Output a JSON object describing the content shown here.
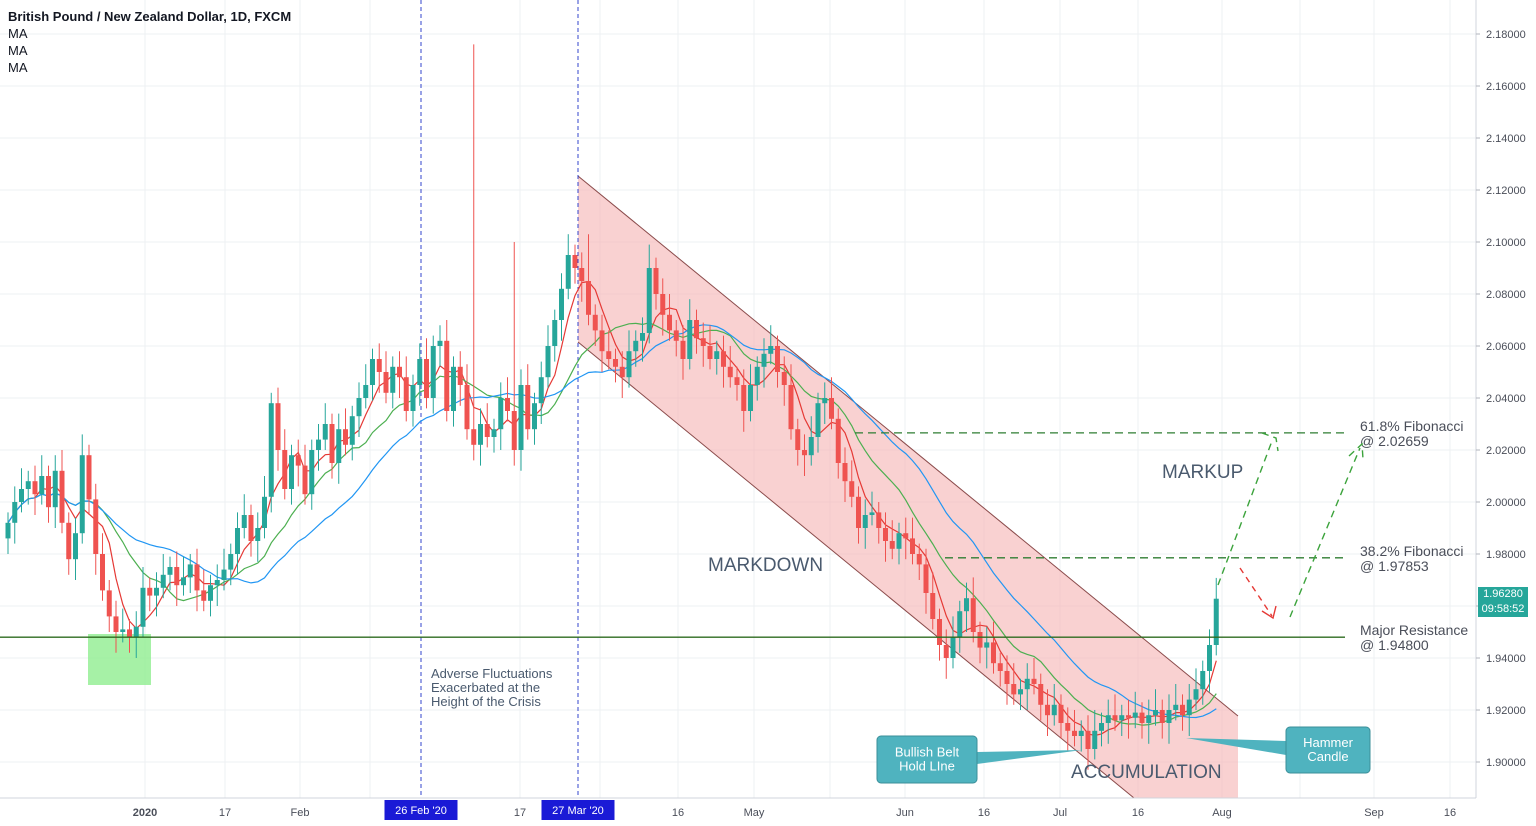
{
  "header": {
    "title": "British Pound / New Zealand Dollar, 1D, FXCM",
    "indicators": [
      "MA",
      "MA",
      "MA"
    ]
  },
  "price_tags": {
    "last": "1.96280",
    "countdown": "09:58:52"
  },
  "colors": {
    "up": "#26a69a",
    "down": "#ef5350",
    "ma_fast": "#e53935",
    "ma_mid": "#4caf50",
    "ma_slow": "#2196f3",
    "channel": "#f5b5b5",
    "callout": "#4fb3bf",
    "grid": "#eef0f3",
    "vline": "#3344cc",
    "date_badge": "#1a1ad6"
  },
  "chart_data": {
    "type": "candlestick",
    "title": "British Pound / New Zealand Dollar, 1D, FXCM",
    "ylim": [
      1.885,
      2.19
    ],
    "y_ticks": [
      "2.18000",
      "2.16000",
      "2.14000",
      "2.12000",
      "2.10000",
      "2.08000",
      "2.06000",
      "2.04000",
      "2.02000",
      "2.00000",
      "1.98000",
      "1.96000",
      "1.94000",
      "1.92000",
      "1.90000"
    ],
    "x_ticks": [
      "2020",
      "17",
      "Feb",
      "26 Feb '20",
      "17",
      "27 Mar '20",
      "16",
      "May",
      "Jun",
      "16",
      "Jul",
      "16",
      "Aug",
      "Sep",
      "16"
    ],
    "events": [
      "26 Feb '20",
      "27 Mar '20"
    ],
    "levels": [
      {
        "name": "Major Resistance",
        "value": 1.948,
        "label": "Major Resistance\n@ 1.94800"
      },
      {
        "name": "38.2% Fibonacci",
        "value": 1.97853,
        "label": "38.2% Fibonacci\n@ 1.97853"
      },
      {
        "name": "61.8% Fibonacci",
        "value": 2.02659,
        "label": "61.8% Fibonacci\n@ 2.02659"
      }
    ],
    "annotations": [
      "MARKDOWN",
      "MARKUP",
      "ACCUMULATION",
      "Adverse Fluctuations\nExacerbated at the\nHeight of the Crisis",
      "Bullish Belt\nHold LIne",
      "Hammer\nCandle"
    ],
    "last_price": 1.9628,
    "closes": [
      1.992,
      2.0,
      2.005,
      2.008,
      2.003,
      2.01,
      1.998,
      2.012,
      1.992,
      1.978,
      1.988,
      2.018,
      2.001,
      1.98,
      1.966,
      1.956,
      1.95,
      1.951,
      1.948,
      1.952,
      1.967,
      1.964,
      1.967,
      1.972,
      1.975,
      1.968,
      1.971,
      1.976,
      1.966,
      1.962,
      1.968,
      1.97,
      1.974,
      1.98,
      1.99,
      1.995,
      1.985,
      1.99,
      2.002,
      2.038,
      2.02,
      2.005,
      2.018,
      2.014,
      2.003,
      2.02,
      2.024,
      2.03,
      2.015,
      2.028,
      2.022,
      2.033,
      2.04,
      2.045,
      2.055,
      2.05,
      2.042,
      2.052,
      2.048,
      2.035,
      2.045,
      2.055,
      2.04,
      2.06,
      2.062,
      2.035,
      2.052,
      2.045,
      2.028,
      2.022,
      2.03,
      2.025,
      2.028,
      2.04,
      2.035,
      2.02,
      2.045,
      2.028,
      2.038,
      2.048,
      2.06,
      2.07,
      2.082,
      2.095,
      2.09,
      2.085,
      2.072,
      2.066,
      2.058,
      2.055,
      2.052,
      2.048,
      2.058,
      2.062,
      2.065,
      2.09,
      2.08,
      2.072,
      2.066,
      2.062,
      2.055,
      2.07,
      2.063,
      2.06,
      2.055,
      2.058,
      2.052,
      2.048,
      2.045,
      2.035,
      2.045,
      2.052,
      2.057,
      2.06,
      2.05,
      2.045,
      2.028,
      2.02,
      2.018,
      2.025,
      2.038,
      2.04,
      2.032,
      2.015,
      2.008,
      2.002,
      1.99,
      1.995,
      1.996,
      1.99,
      1.985,
      1.982,
      1.988,
      1.986,
      1.98,
      1.976,
      1.965,
      1.955,
      1.945,
      1.94,
      1.948,
      1.958,
      1.963,
      1.95,
      1.944,
      1.946,
      1.938,
      1.935,
      1.93,
      1.926,
      1.928,
      1.932,
      1.93,
      1.922,
      1.918,
      1.922,
      1.915,
      1.912,
      1.91,
      1.912,
      1.905,
      1.912,
      1.915,
      1.918,
      1.916,
      1.918,
      1.917,
      1.919,
      1.915,
      1.918,
      1.92,
      1.915,
      1.92,
      1.922,
      1.918,
      1.924,
      1.928,
      1.935,
      1.945,
      1.9628
    ]
  }
}
